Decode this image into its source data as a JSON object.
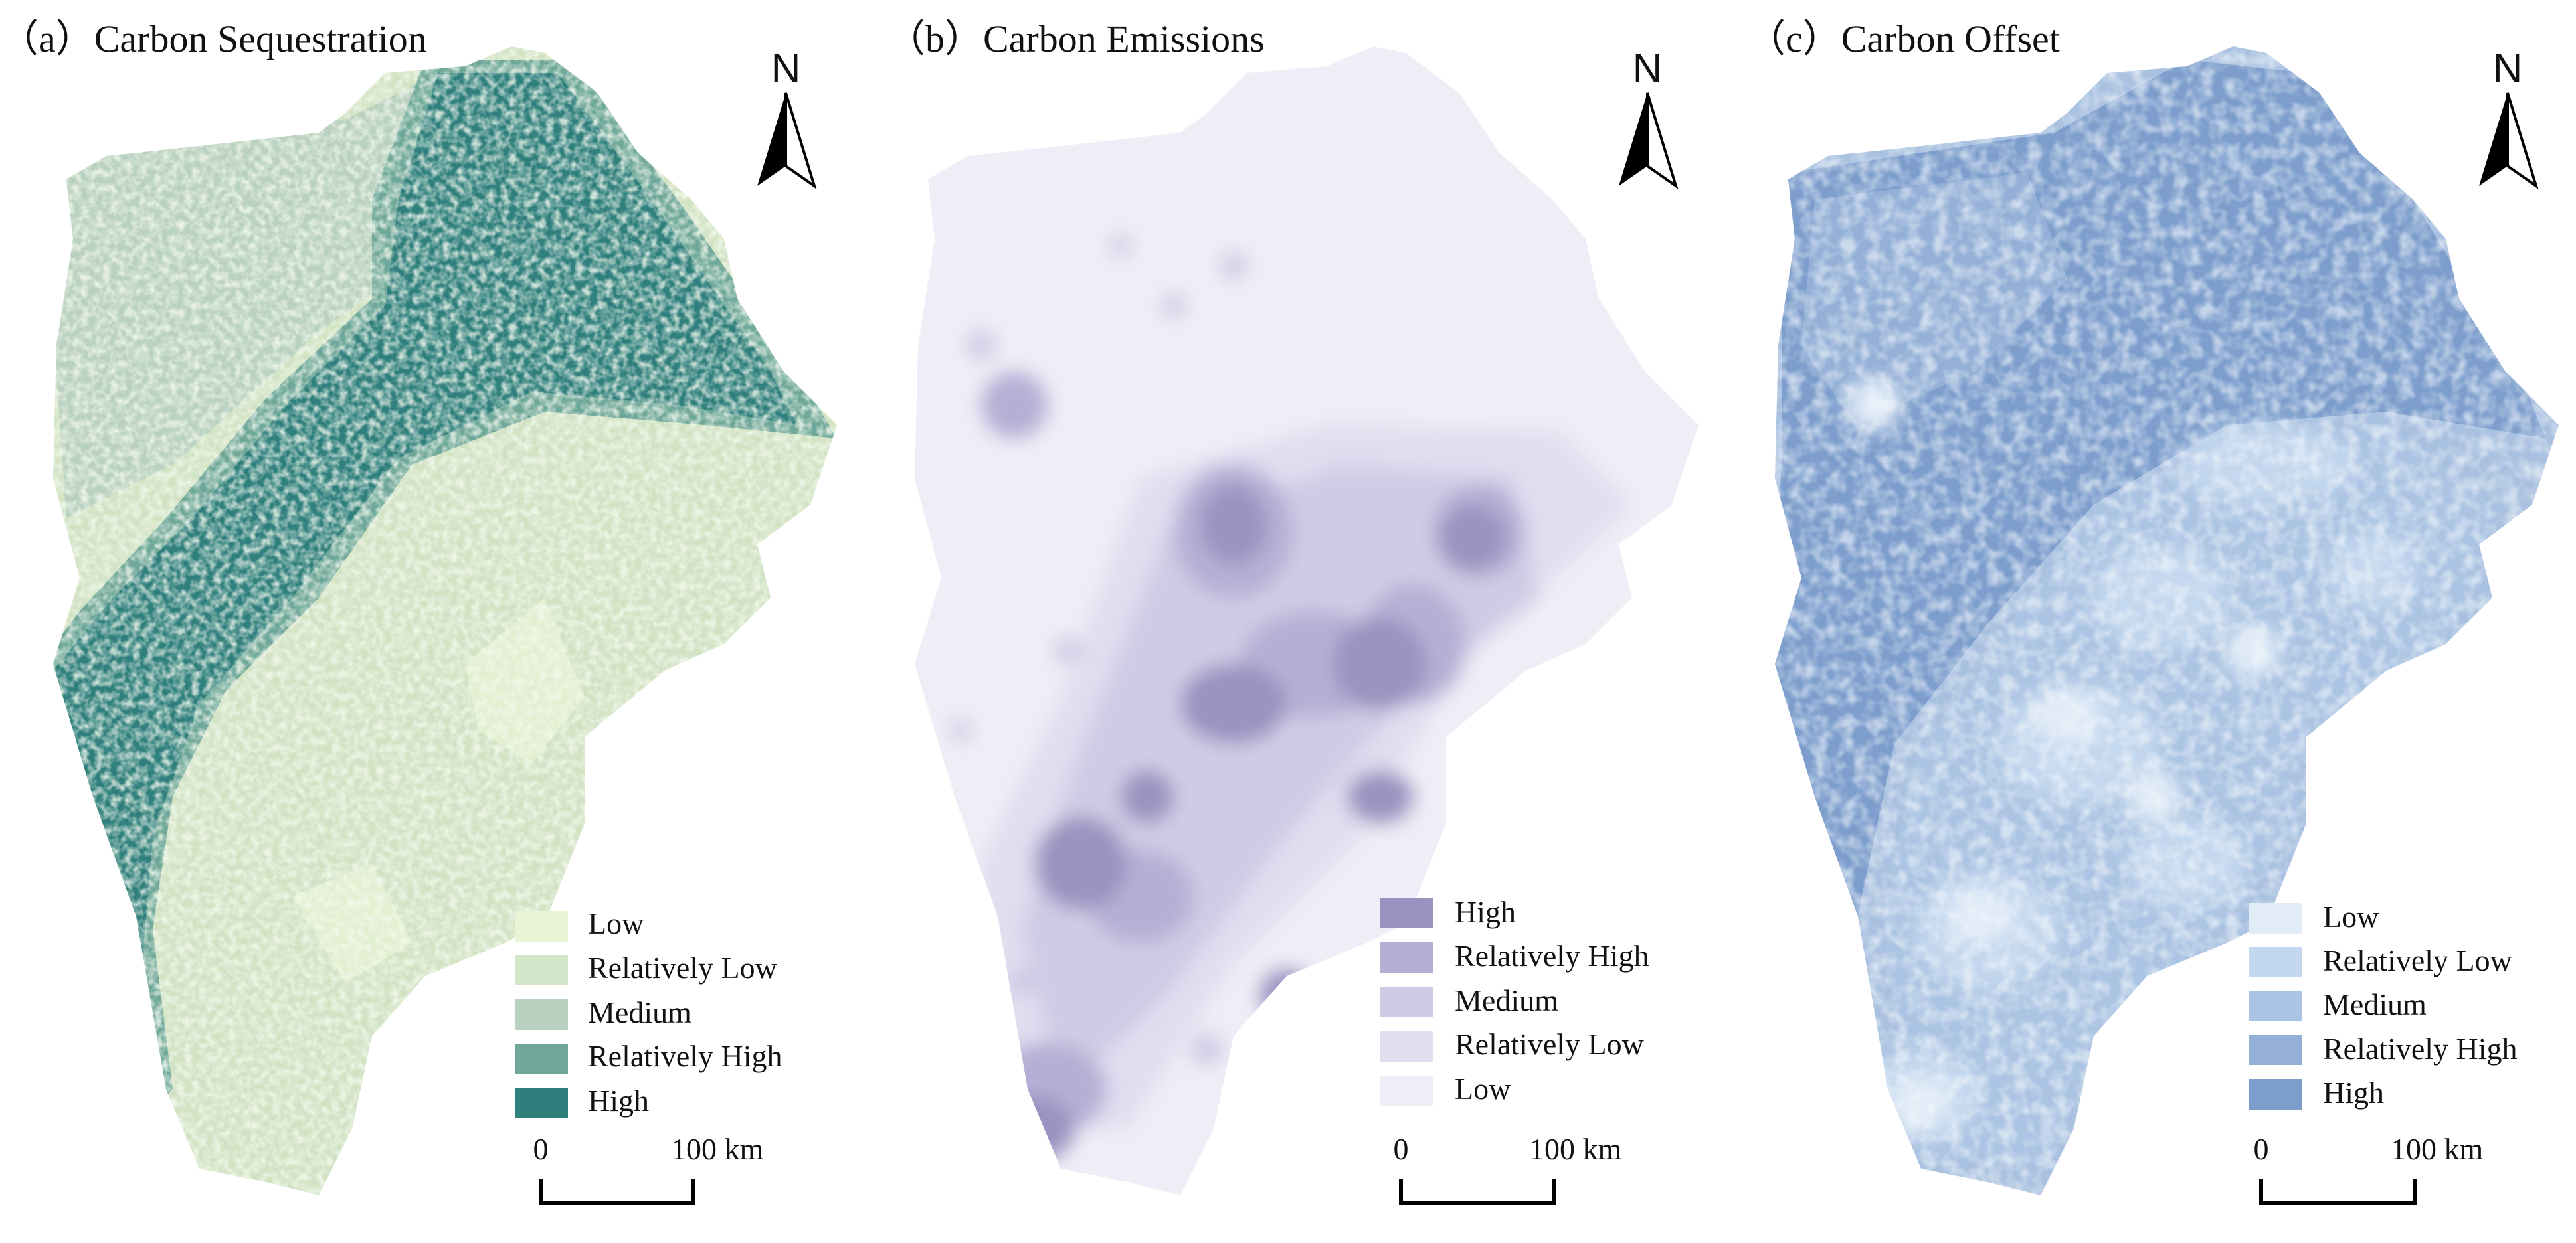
{
  "panels": [
    {
      "title": "（a）Carbon Sequestration",
      "base_color": "#d2e3c4",
      "legend": [
        {
          "label": "Low",
          "color": "#e8f4d5"
        },
        {
          "label": "Relatively Low",
          "color": "#d3e6c9"
        },
        {
          "label": "Medium",
          "color": "#b9d1c0"
        },
        {
          "label": "Relatively High",
          "color": "#6fa89a"
        },
        {
          "label": "High",
          "color": "#2f7f7d"
        }
      ],
      "north_label": "N",
      "scale": {
        "start": "0",
        "end": "100 km"
      }
    },
    {
      "title": "（b）Carbon Emissions",
      "base_color": "#efedf6",
      "legend": [
        {
          "label": "High",
          "color": "#9a92c0"
        },
        {
          "label": "Relatively High",
          "color": "#b6afd5"
        },
        {
          "label": "Medium",
          "color": "#d0cbe5"
        },
        {
          "label": "Relatively Low",
          "color": "#e1def0"
        },
        {
          "label": "Low",
          "color": "#efedf6"
        }
      ],
      "north_label": "N",
      "scale": {
        "start": "0",
        "end": "100 km"
      }
    },
    {
      "title": "（c）Carbon Offset",
      "base_color": "#a9c1e0",
      "legend": [
        {
          "label": "Low",
          "color": "#e2ecf7"
        },
        {
          "label": "Relatively Low",
          "color": "#c3d7ee"
        },
        {
          "label": "Medium",
          "color": "#abc4e3"
        },
        {
          "label": "Relatively High",
          "color": "#94b0d7"
        },
        {
          "label": "High",
          "color": "#7d9ecd"
        }
      ],
      "north_label": "N",
      "scale": {
        "start": "0",
        "end": "100 km"
      }
    }
  ]
}
